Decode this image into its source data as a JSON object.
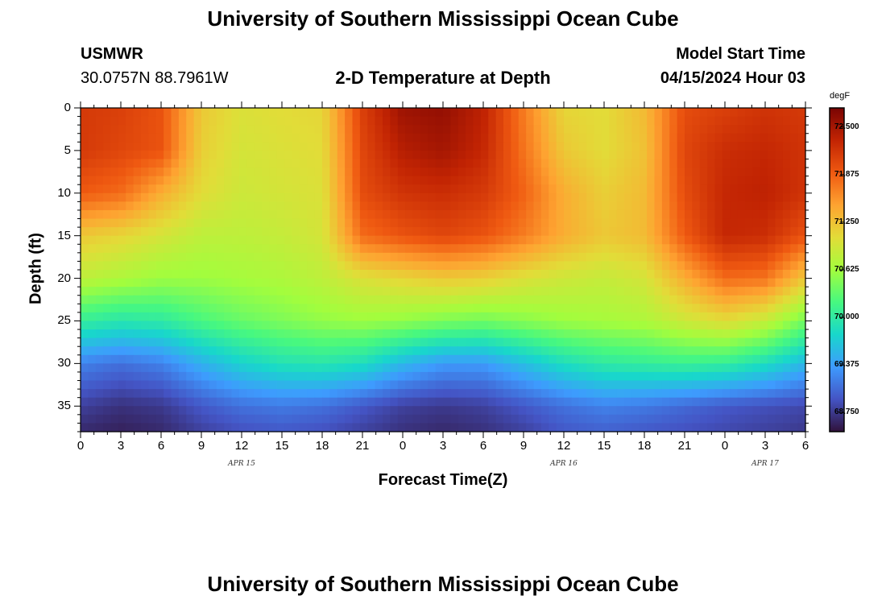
{
  "header": {
    "title": "University of Southern Mississippi Ocean Cube",
    "station_name": "USMWR",
    "station_coords": "30.0757N  88.7961W",
    "plot_title": "2-D Temperature at Depth",
    "run_label": "Model Start Time",
    "run_time": "04/15/2024 Hour 03"
  },
  "footer": {
    "title": "University of Southern Mississippi Ocean Cube"
  },
  "chart_data": {
    "type": "heatmap",
    "title": "2-D Temperature at Depth",
    "xlabel": "Forecast Time(Z)",
    "ylabel": "Depth (ft)",
    "x_unit": "hours from Apr 15 00Z",
    "xlim": [
      0,
      54
    ],
    "ylim": [
      38,
      0
    ],
    "x_tick_values": [
      0,
      3,
      6,
      9,
      12,
      15,
      18,
      21,
      24,
      27,
      30,
      33,
      36,
      39,
      42,
      45,
      48,
      51,
      54
    ],
    "x_tick_labels": [
      "0",
      "3",
      "6",
      "9",
      "12",
      "15",
      "18",
      "21",
      "0",
      "3",
      "6",
      "9",
      "12",
      "15",
      "18",
      "21",
      "0",
      "3",
      "6"
    ],
    "date_labels": [
      {
        "x": 12,
        "text": "APR 15"
      },
      {
        "x": 36,
        "text": "APR 16"
      },
      {
        "x": 51,
        "text": "APR 17"
      }
    ],
    "y_tick_values": [
      0,
      5,
      10,
      15,
      20,
      25,
      30,
      35
    ],
    "y_tick_labels": [
      "0",
      "5",
      "10",
      "15",
      "20",
      "25",
      "30",
      "35"
    ],
    "colorbar": {
      "unit": "degF",
      "range": [
        68.5,
        72.75
      ],
      "tick_values": [
        72.5,
        71.875,
        71.25,
        70.625,
        70.0,
        69.375,
        68.75
      ],
      "tick_labels": [
        "72.500",
        "71.875",
        "71.250",
        "70.625",
        "70.000",
        "69.375",
        "68.750"
      ],
      "colors": [
        "#30123b",
        "#4454c4",
        "#3e9bfe",
        "#18d7cb",
        "#47f880",
        "#a3fd3d",
        "#e2dc38",
        "#fea331",
        "#ef5911",
        "#c22403",
        "#7a0403"
      ]
    },
    "time_hours": [
      0,
      3,
      6,
      9,
      12,
      15,
      18,
      21,
      24,
      27,
      30,
      33,
      36,
      39,
      42,
      45,
      48,
      51,
      54
    ],
    "depths_ft": [
      0,
      5,
      10,
      15,
      20,
      25,
      30,
      35,
      38
    ],
    "temperature_degF": [
      [
        72.15,
        72.1,
        71.95,
        71.2,
        71.0,
        71.05,
        71.1,
        72.1,
        72.55,
        72.6,
        72.35,
        71.7,
        71.1,
        71.05,
        71.3,
        72.0,
        72.1,
        72.2,
        72.15
      ],
      [
        72.15,
        72.05,
        71.95,
        71.15,
        70.95,
        71.0,
        71.05,
        72.05,
        72.4,
        72.5,
        72.3,
        71.75,
        71.2,
        71.05,
        71.25,
        72.05,
        72.25,
        72.3,
        72.2
      ],
      [
        71.9,
        71.8,
        71.4,
        71.05,
        70.9,
        70.95,
        71.0,
        72.0,
        72.2,
        72.25,
        72.15,
        71.85,
        71.4,
        71.15,
        71.3,
        72.0,
        72.3,
        72.35,
        72.2
      ],
      [
        71.2,
        71.1,
        70.95,
        70.8,
        70.8,
        70.85,
        70.95,
        71.8,
        71.95,
        72.05,
        71.95,
        71.7,
        71.4,
        71.2,
        71.3,
        71.9,
        72.3,
        72.25,
        71.95
      ],
      [
        70.8,
        70.7,
        70.6,
        70.6,
        70.65,
        70.7,
        70.8,
        71.0,
        71.1,
        71.2,
        71.15,
        71.0,
        70.9,
        70.85,
        70.95,
        71.4,
        71.8,
        71.75,
        71.2
      ],
      [
        70.05,
        69.95,
        70.0,
        70.2,
        70.35,
        70.45,
        70.55,
        70.6,
        70.55,
        70.45,
        70.4,
        70.5,
        70.6,
        70.65,
        70.7,
        70.9,
        71.05,
        70.85,
        70.4
      ],
      [
        69.2,
        69.1,
        69.2,
        69.5,
        69.75,
        69.9,
        69.95,
        69.85,
        69.55,
        69.35,
        69.35,
        69.6,
        69.85,
        70.0,
        70.05,
        70.1,
        70.05,
        69.85,
        69.55
      ],
      [
        68.8,
        68.7,
        68.75,
        68.95,
        69.1,
        69.15,
        69.1,
        68.95,
        68.8,
        68.75,
        68.8,
        68.95,
        69.1,
        69.2,
        69.15,
        69.05,
        68.95,
        68.9,
        68.85
      ],
      [
        68.65,
        68.6,
        68.65,
        68.8,
        68.9,
        68.95,
        68.9,
        68.8,
        68.7,
        68.65,
        68.7,
        68.8,
        68.95,
        69.0,
        68.95,
        68.9,
        68.85,
        68.8,
        68.75
      ]
    ]
  }
}
